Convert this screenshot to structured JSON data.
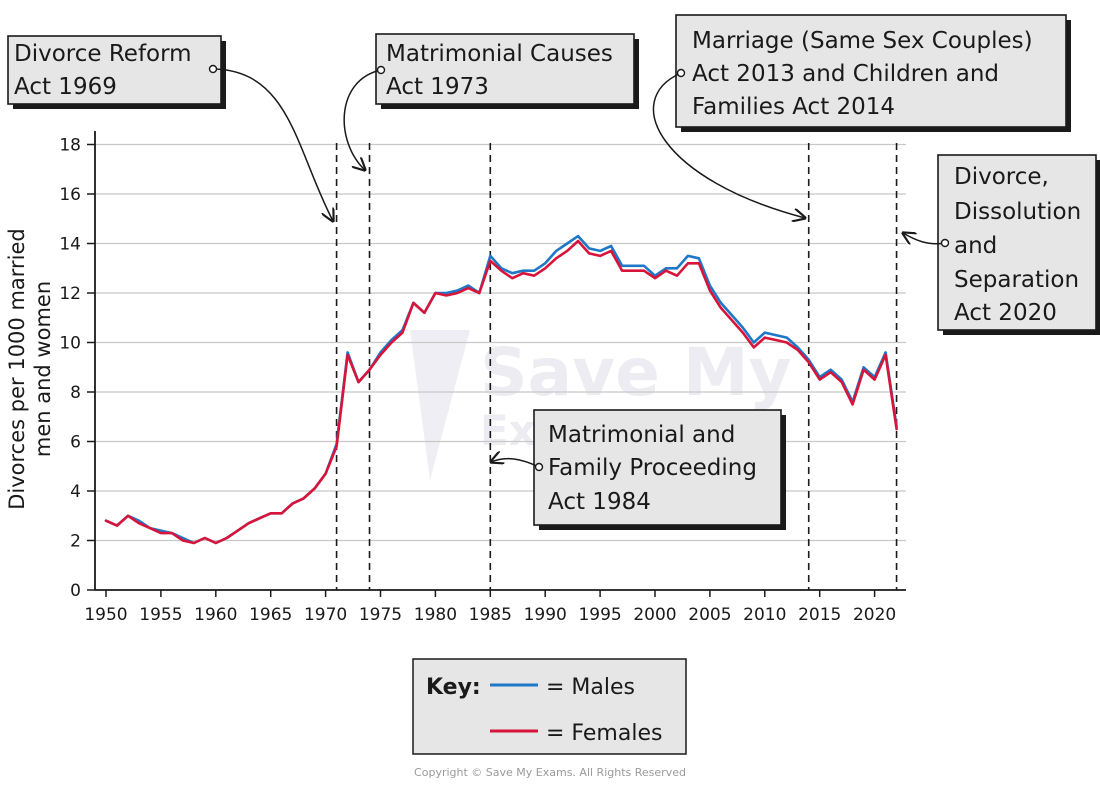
{
  "chart_data": {
    "type": "line",
    "xlabel": "",
    "ylabel": "Divorces per 1000 married men and women",
    "ylabel_lines": [
      "Divorces per 1000 married",
      "men and women"
    ],
    "xlim": [
      1950,
      2022
    ],
    "ylim": [
      0,
      18
    ],
    "x_ticks": [
      1950,
      1955,
      1960,
      1965,
      1970,
      1975,
      1980,
      1985,
      1990,
      1995,
      2000,
      2005,
      2010,
      2015,
      2020
    ],
    "y_ticks": [
      0,
      2,
      4,
      6,
      8,
      10,
      12,
      14,
      16,
      18
    ],
    "grid": true,
    "x": [
      1950,
      1951,
      1952,
      1953,
      1954,
      1955,
      1956,
      1957,
      1958,
      1959,
      1960,
      1961,
      1962,
      1963,
      1964,
      1965,
      1966,
      1967,
      1968,
      1969,
      1970,
      1971,
      1972,
      1973,
      1974,
      1975,
      1976,
      1977,
      1978,
      1979,
      1980,
      1981,
      1982,
      1983,
      1984,
      1985,
      1986,
      1987,
      1988,
      1989,
      1990,
      1991,
      1992,
      1993,
      1994,
      1995,
      1996,
      1997,
      1998,
      1999,
      2000,
      2001,
      2002,
      2003,
      2004,
      2005,
      2006,
      2007,
      2008,
      2009,
      2010,
      2011,
      2012,
      2013,
      2014,
      2015,
      2016,
      2017,
      2018,
      2019,
      2020,
      2021,
      2022
    ],
    "series": [
      {
        "name": "Males",
        "color": "#1f77c8",
        "values": [
          2.8,
          2.6,
          3.0,
          2.8,
          2.5,
          2.4,
          2.3,
          2.1,
          1.9,
          2.1,
          1.9,
          2.1,
          2.4,
          2.7,
          2.9,
          3.1,
          3.1,
          3.5,
          3.7,
          4.1,
          4.7,
          5.9,
          9.6,
          8.4,
          8.9,
          9.6,
          10.1,
          10.5,
          11.6,
          11.2,
          12.0,
          12.0,
          12.1,
          12.3,
          12.0,
          13.5,
          13.0,
          12.8,
          12.9,
          12.9,
          13.2,
          13.7,
          14.0,
          14.3,
          13.8,
          13.7,
          13.9,
          13.1,
          13.1,
          13.1,
          12.7,
          13.0,
          13.0,
          13.5,
          13.4,
          12.3,
          11.6,
          11.1,
          10.6,
          10.0,
          10.4,
          10.3,
          10.2,
          9.8,
          9.3,
          8.6,
          8.9,
          8.5,
          7.6,
          9.0,
          8.6,
          9.6,
          6.6
        ]
      },
      {
        "name": "Females",
        "color": "#d8143a",
        "values": [
          2.8,
          2.6,
          3.0,
          2.7,
          2.5,
          2.3,
          2.3,
          2.0,
          1.9,
          2.1,
          1.9,
          2.1,
          2.4,
          2.7,
          2.9,
          3.1,
          3.1,
          3.5,
          3.7,
          4.1,
          4.7,
          5.8,
          9.5,
          8.4,
          8.9,
          9.5,
          10.0,
          10.4,
          11.6,
          11.2,
          12.0,
          11.9,
          12.0,
          12.2,
          12.0,
          13.3,
          12.9,
          12.6,
          12.8,
          12.7,
          13.0,
          13.4,
          13.7,
          14.1,
          13.6,
          13.5,
          13.7,
          12.9,
          12.9,
          12.9,
          12.6,
          12.9,
          12.7,
          13.2,
          13.2,
          12.1,
          11.4,
          10.9,
          10.4,
          9.8,
          10.2,
          10.1,
          10.0,
          9.7,
          9.2,
          8.5,
          8.8,
          8.4,
          7.5,
          8.9,
          8.5,
          9.5,
          6.5
        ]
      }
    ],
    "annotations": [
      {
        "lines": [
          "Divorce Reform",
          "Act 1969"
        ],
        "year": 1971
      },
      {
        "lines": [
          "Matrimonial Causes",
          "Act 1973"
        ],
        "year": 1974
      },
      {
        "lines": [
          "Matrimonial and",
          "Family Proceeding",
          "Act 1984"
        ],
        "year": 1985
      },
      {
        "lines": [
          "Marriage (Same Sex Couples)",
          "Act 2013 and Children and",
          "Families Act 2014"
        ],
        "year": 2014
      },
      {
        "lines": [
          "Divorce,",
          "Dissolution",
          "and",
          "Separation",
          "Act 2020"
        ],
        "year": 2022
      }
    ],
    "legend": {
      "title": "Key:",
      "entries": [
        {
          "label": "= Males",
          "color": "#1f77c8"
        },
        {
          "label": "= Females",
          "color": "#d8143a"
        }
      ],
      "position": "bottom-center"
    }
  },
  "watermark": {
    "line1": "Save My",
    "line2": "Exams"
  },
  "copyright": "Copyright © Save My Exams. All Rights Reserved"
}
